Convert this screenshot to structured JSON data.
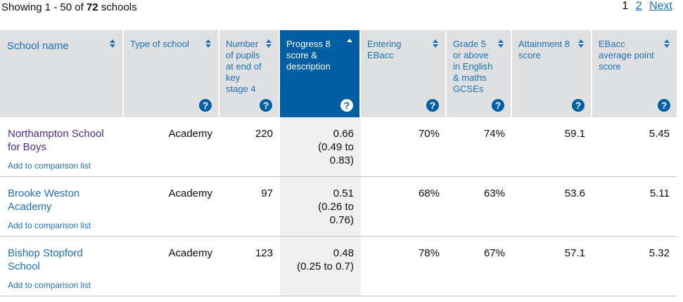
{
  "results": {
    "prefix": "Showing 1 - 50 of ",
    "total": "72",
    "suffix": " schools"
  },
  "pagination": {
    "current": "1",
    "page2": "2",
    "next": "Next"
  },
  "columns": [
    {
      "label": "School name",
      "sort": "updown",
      "help": false
    },
    {
      "label": "Type of school",
      "sort": "updown",
      "help": true
    },
    {
      "label": "Number of pupils at end of key stage 4",
      "sort": "updown",
      "help": true
    },
    {
      "label": "Progress 8 score & description",
      "sort": "up",
      "help": true
    },
    {
      "label": "Entering EBacc",
      "sort": "updown",
      "help": true
    },
    {
      "label": "Grade 5 or above in English & maths GCSEs",
      "sort": "updown",
      "help": true
    },
    {
      "label": "Attainment 8 score",
      "sort": "updown",
      "help": true
    },
    {
      "label": "EBacc average point score",
      "sort": "updown",
      "help": true
    }
  ],
  "help_glyph": "?",
  "compare_label": "Add to comparison list",
  "rows": [
    {
      "name": "Northampton School for Boys",
      "type": "Academy",
      "pupils": "220",
      "p8": "0.66",
      "p8_range": "(0.49 to 0.83)",
      "ebacc": "70%",
      "grade5": "74%",
      "att8": "59.1",
      "ebacc_aps": "5.45"
    },
    {
      "name": "Brooke Weston Academy",
      "type": "Academy",
      "pupils": "97",
      "p8": "0.51",
      "p8_range": "(0.26 to 0.76)",
      "ebacc": "68%",
      "grade5": "63%",
      "att8": "53.6",
      "ebacc_aps": "5.11"
    },
    {
      "name": "Bishop Stopford School",
      "type": "Academy",
      "pupils": "123",
      "p8": "0.48",
      "p8_range": "(0.25 to 0.7)",
      "ebacc": "78%",
      "grade5": "67%",
      "att8": "57.1",
      "ebacc_aps": "5.32"
    }
  ],
  "colors": {
    "header_bg": "#dee0e2",
    "active_header_bg": "#005ea5",
    "link": "#1d70b8",
    "visited_link": "#4c2c92",
    "active_col_bg": "#f0f0f0"
  }
}
